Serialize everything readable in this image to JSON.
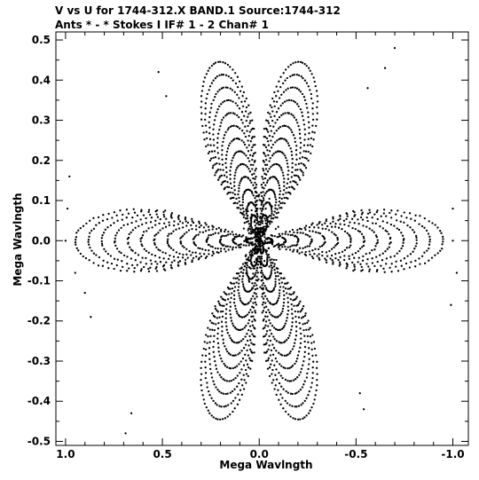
{
  "header": {
    "line1": "V vs U for 1744-312.X BAND.1   Source:1744-312",
    "line2": "Ants * - *     Stokes I  IF# 1 - 2  Chan# 1"
  },
  "colors": {
    "background": "#ffffff",
    "foreground": "#000000"
  },
  "chart_data": {
    "type": "scatter",
    "title": "V vs U for 1744-312.X BAND.1   Source:1744-312",
    "subtitle": "Ants * - *     Stokes I  IF# 1 - 2  Chan# 1",
    "xlabel": "Mega Wavlngth",
    "ylabel": "Mega Wavlngth",
    "xlim": [
      1.05,
      -1.08
    ],
    "ylim": [
      -0.51,
      0.52
    ],
    "x_reversed": true,
    "grid": false,
    "x_ticks": [
      1.0,
      0.5,
      0.0,
      -0.5,
      -1.0
    ],
    "x_tick_labels": [
      "1.0",
      "0.5",
      "0.0",
      "-0.5",
      "-1.0"
    ],
    "y_ticks": [
      0.5,
      0.4,
      0.3,
      0.2,
      0.1,
      0.0,
      -0.1,
      -0.2,
      -0.3,
      -0.4,
      -0.5
    ],
    "y_tick_labels": [
      "0.5",
      "0.4",
      "0.3",
      "0.2",
      "0.1",
      "0.0",
      "-0.1",
      "-0.2",
      "-0.3",
      "-0.4",
      "-0.5"
    ],
    "marker": "dot",
    "outer_points": [
      {
        "u": 0.98,
        "v": 0.16
      },
      {
        "u": 0.99,
        "v": 0.08
      },
      {
        "u": 1.0,
        "v": 0.0
      },
      {
        "u": 0.95,
        "v": -0.08
      },
      {
        "u": 0.9,
        "v": -0.13
      },
      {
        "u": 0.87,
        "v": -0.19
      },
      {
        "u": 0.52,
        "v": 0.42
      },
      {
        "u": 0.48,
        "v": 0.36
      },
      {
        "u": 0.66,
        "v": -0.43
      },
      {
        "u": 0.69,
        "v": -0.48
      },
      {
        "u": -0.7,
        "v": 0.48
      },
      {
        "u": -0.65,
        "v": 0.43
      },
      {
        "u": -0.56,
        "v": 0.38
      },
      {
        "u": -1.0,
        "v": 0.08
      },
      {
        "u": -1.0,
        "v": 0.0
      },
      {
        "u": -1.02,
        "v": -0.08
      },
      {
        "u": -0.99,
        "v": -0.16
      },
      {
        "u": -0.54,
        "v": -0.42
      },
      {
        "u": -0.52,
        "v": -0.38
      }
    ]
  }
}
